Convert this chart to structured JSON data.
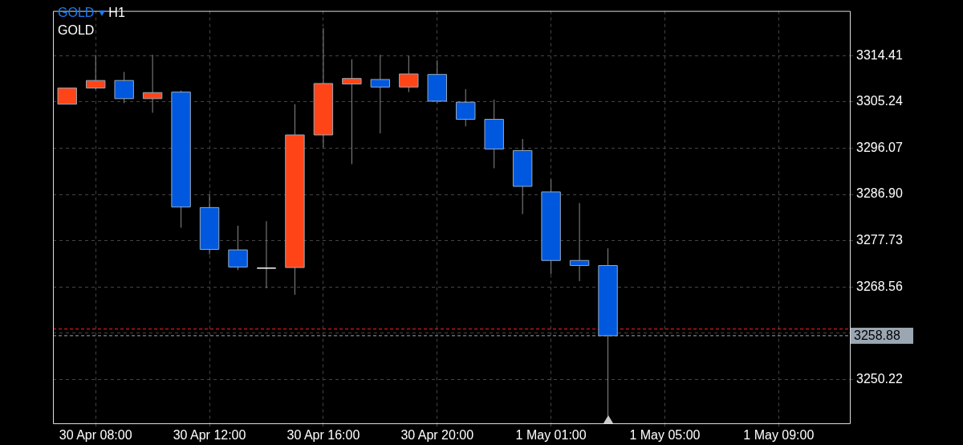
{
  "chart_data": {
    "type": "candlestick",
    "title": "GOLD",
    "subtitle": "GOLD",
    "annotations": [
      "H1"
    ],
    "categories": [
      null,
      "30 Apr 08:00",
      null,
      null,
      null,
      "30 Apr 12:00",
      null,
      null,
      null,
      "30 Apr 16:00",
      null,
      null,
      null,
      "30 Apr 20:00",
      null,
      null,
      null,
      "1 May 01:00",
      null,
      null,
      null,
      "1 May 05:00",
      null,
      null,
      null,
      "1 May 09:00",
      null,
      null
    ],
    "ohlc": [
      [
        3304.8,
        3308.0,
        3304.8,
        3308.0
      ],
      [
        3308.0,
        3314.6,
        3307.7,
        3309.5
      ],
      [
        3309.5,
        3311.2,
        3305.0,
        3305.9
      ],
      [
        3305.9,
        3314.6,
        3303.1,
        3307.1
      ],
      [
        3307.2,
        3307.5,
        3280.3,
        3284.4
      ],
      [
        3284.3,
        3286.9,
        3275.0,
        3276.0
      ],
      [
        3275.9,
        3280.7,
        3271.9,
        3272.5
      ],
      [
        3272.4,
        3281.6,
        3268.3,
        3272.4
      ],
      [
        3272.4,
        3304.8,
        3267.0,
        3298.7
      ],
      [
        3298.7,
        3319.9,
        3296.2,
        3308.9
      ],
      [
        3308.8,
        3313.7,
        3292.9,
        3309.9
      ],
      [
        3309.7,
        3314.6,
        3299.0,
        3308.2
      ],
      [
        3308.2,
        3314.4,
        3307.2,
        3310.8
      ],
      [
        3310.7,
        3313.5,
        3305.0,
        3305.4
      ],
      [
        3305.2,
        3307.8,
        3300.4,
        3301.8
      ],
      [
        3301.8,
        3305.7,
        3292.1,
        3295.9
      ],
      [
        3295.6,
        3297.9,
        3283.0,
        3288.5
      ],
      [
        3287.4,
        3289.9,
        3271.1,
        3273.8
      ],
      [
        3273.8,
        3285.2,
        3269.7,
        3272.8
      ],
      [
        3272.8,
        3276.2,
        3242.9,
        3258.88
      ],
      null,
      null,
      null,
      null,
      null,
      null,
      null,
      null
    ],
    "colors": [
      "#ff4518",
      "#ff4518",
      "#0058de",
      "#ff4518",
      "#0058de",
      "#0058de",
      "#0058de",
      "#ffffff",
      "#ff4518",
      "#ff4518",
      "#ff4518",
      "#0058de",
      "#ff4518",
      "#0058de",
      "#0058de",
      "#0058de",
      "#0058de",
      "#0058de",
      "#0058de",
      "#0058de",
      null,
      null,
      null,
      null,
      null,
      null,
      null,
      null
    ],
    "ylim": [
      3241.5,
      3323.3
    ],
    "yticks": [
      3250.22,
      {
        "value": 3259.39,
        "label": null
      },
      3268.56,
      3277.73,
      {
        "value": 3286.9,
        "label": "3286.90"
      },
      3296.07,
      3305.24,
      3314.41
    ],
    "ref_lines": [
      {
        "axis": "y",
        "value": 3260.2,
        "color": "#ff2020",
        "line_style": "dashed"
      },
      {
        "axis": "y",
        "value": 3258.88,
        "label": "3258.88",
        "color": "#9aa6b2",
        "line_style": "dashed"
      }
    ],
    "grid": true,
    "legend": false
  }
}
